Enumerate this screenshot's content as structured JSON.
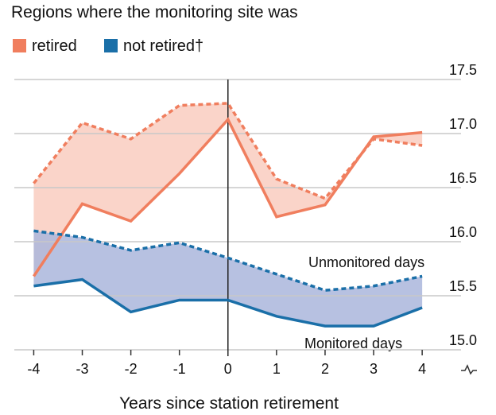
{
  "chart_data": {
    "type": "line",
    "title": "Regions where the monitoring site was",
    "x_label": "Years since station retirement",
    "x": [
      -4,
      -3,
      -2,
      -1,
      0,
      1,
      2,
      3,
      4
    ],
    "xlim": [
      -4.4,
      4.8
    ],
    "xticks": [
      -4,
      -3,
      -2,
      -1,
      0,
      1,
      2,
      3,
      4
    ],
    "ylim": [
      15.0,
      17.5
    ],
    "yticks": [
      {
        "value": 15,
        "label": "15.0"
      },
      15.5,
      {
        "value": 16,
        "label": "16.0"
      },
      16.5,
      {
        "value": 17,
        "label": "17.0"
      },
      17.5
    ],
    "grid": true,
    "annotations": {
      "unmonitored": "Unmonitored days",
      "monitored": "Monitored days"
    },
    "groups": [
      {
        "name": "retired",
        "color": "#f07e5e",
        "fill": "#f9cdbf",
        "unmonitored": [
          16.54,
          17.1,
          16.95,
          17.26,
          17.28,
          16.58,
          16.4,
          16.95,
          16.89
        ],
        "monitored": [
          15.68,
          16.35,
          16.19,
          16.63,
          17.13,
          16.23,
          16.34,
          16.97,
          17.01
        ]
      },
      {
        "name": "not retired†",
        "color": "#1a6fa8",
        "fill": "#aab6dc",
        "unmonitored": [
          16.1,
          16.04,
          15.92,
          15.99,
          15.85,
          15.7,
          15.55,
          15.59,
          15.68
        ],
        "monitored": [
          15.59,
          15.65,
          15.35,
          15.46,
          15.46,
          15.31,
          15.22,
          15.22,
          15.39
        ]
      }
    ]
  }
}
